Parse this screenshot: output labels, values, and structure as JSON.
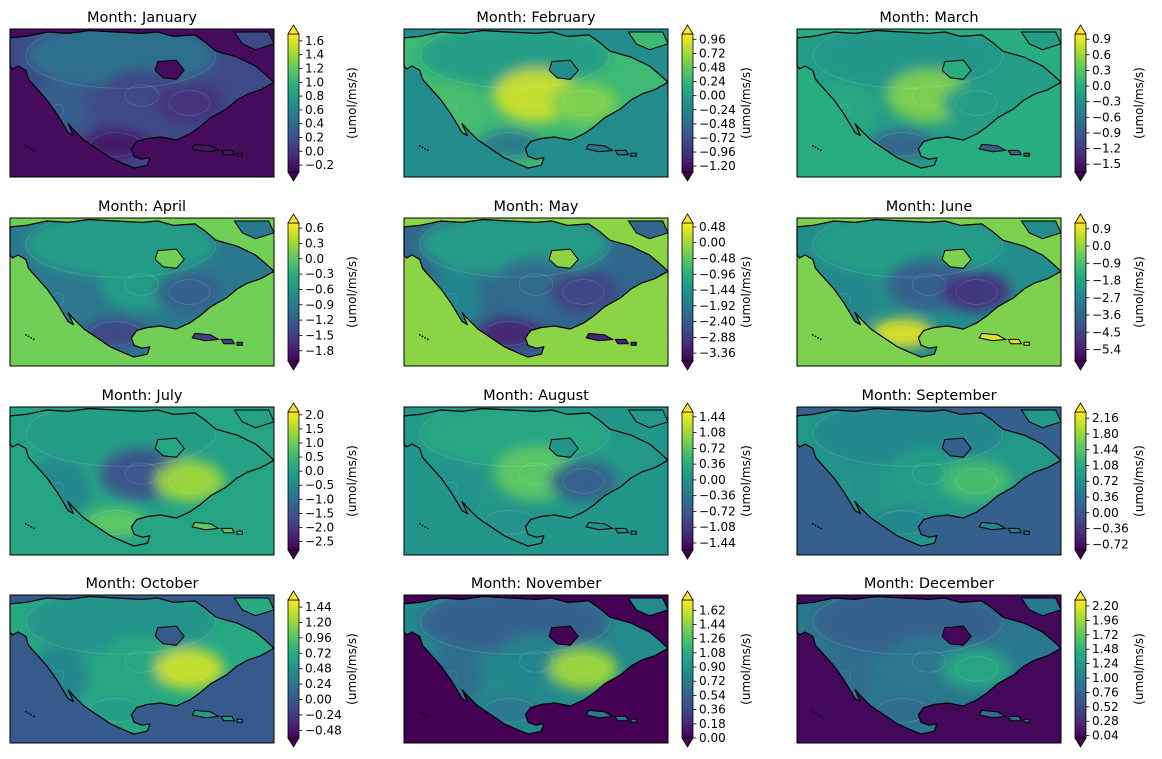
{
  "colormap": "viridis",
  "colors": {
    "ocean_default": "#3e4a89",
    "coast": "#000000",
    "frame": "#000000",
    "contour_line": "#ffffff"
  },
  "chart_data": [
    {
      "type": "heatmap",
      "title": "Month: January",
      "colorbar_label": "(umol/ms/s)",
      "colorbar_ticks": [
        "1.6",
        "1.4",
        "1.2",
        "1.0",
        "0.8",
        "0.6",
        "0.4",
        "0.2",
        "0.0",
        "−0.2"
      ],
      "vmin": -0.3,
      "vmax": 1.7,
      "ocean_value": 0.03,
      "pattern": [
        0.38,
        0.3,
        0.22,
        0.15,
        0.06
      ]
    },
    {
      "type": "heatmap",
      "title": "Month: February",
      "colorbar_label": "(umol/ms/s)",
      "colorbar_ticks": [
        "0.96",
        "0.72",
        "0.48",
        "0.24",
        "0.00",
        "−0.24",
        "−0.48",
        "−0.72",
        "−0.96",
        "−1.20"
      ],
      "vmin": -1.3,
      "vmax": 1.05,
      "ocean_value": 0.48,
      "pattern": [
        0.55,
        0.7,
        0.92,
        0.8,
        0.4
      ]
    },
    {
      "type": "heatmap",
      "title": "Month: March",
      "colorbar_label": "(umol/ms/s)",
      "colorbar_ticks": [
        "0.9",
        "0.6",
        "0.3",
        "0.0",
        "−0.3",
        "−0.6",
        "−0.9",
        "−1.2",
        "−1.5"
      ],
      "vmin": -1.65,
      "vmax": 1.0,
      "ocean_value": 0.62,
      "pattern": [
        0.52,
        0.6,
        0.8,
        0.55,
        0.3
      ]
    },
    {
      "type": "heatmap",
      "title": "Month: April",
      "colorbar_label": "(umol/ms/s)",
      "colorbar_ticks": [
        "0.6",
        "0.3",
        "0.0",
        "−0.3",
        "−0.6",
        "−0.9",
        "−1.2",
        "−1.5",
        "−1.8"
      ],
      "vmin": -2.0,
      "vmax": 0.7,
      "ocean_value": 0.78,
      "pattern": [
        0.55,
        0.4,
        0.55,
        0.3,
        0.2
      ]
    },
    {
      "type": "heatmap",
      "title": "Month: May",
      "colorbar_label": "(umol/ms/s)",
      "colorbar_ticks": [
        "0.48",
        "0.00",
        "−0.48",
        "−0.96",
        "−1.44",
        "−1.92",
        "−2.40",
        "−2.88",
        "−3.36"
      ],
      "vmin": -3.6,
      "vmax": 0.6,
      "ocean_value": 0.82,
      "pattern": [
        0.55,
        0.45,
        0.35,
        0.2,
        0.1
      ]
    },
    {
      "type": "heatmap",
      "title": "Month: June",
      "colorbar_label": "(umol/ms/s)",
      "colorbar_ticks": [
        "0.9",
        "0.0",
        "−0.9",
        "−1.8",
        "−2.7",
        "−3.6",
        "−4.5",
        "−5.4"
      ],
      "vmin": -6.0,
      "vmax": 1.2,
      "ocean_value": 0.8,
      "pattern": [
        0.55,
        0.45,
        0.3,
        0.15,
        0.95
      ]
    },
    {
      "type": "heatmap",
      "title": "Month: July",
      "colorbar_label": "(umol/ms/s)",
      "colorbar_ticks": [
        "2.0",
        "1.5",
        "1.0",
        "0.5",
        "0.0",
        "−0.5",
        "−1.0",
        "−1.5",
        "−2.0",
        "−2.5"
      ],
      "vmin": -2.8,
      "vmax": 2.1,
      "ocean_value": 0.58,
      "pattern": [
        0.55,
        0.45,
        0.25,
        0.85,
        0.75
      ]
    },
    {
      "type": "heatmap",
      "title": "Month: August",
      "colorbar_label": "(umol/ms/s)",
      "colorbar_ticks": [
        "1.44",
        "1.08",
        "0.72",
        "0.36",
        "0.00",
        "−0.36",
        "−0.72",
        "−1.08",
        "−1.44"
      ],
      "vmin": -1.6,
      "vmax": 1.55,
      "ocean_value": 0.52,
      "pattern": [
        0.6,
        0.5,
        0.75,
        0.3,
        0.5
      ]
    },
    {
      "type": "heatmap",
      "title": "Month: September",
      "colorbar_label": "(umol/ms/s)",
      "colorbar_ticks": [
        "2.16",
        "1.80",
        "1.44",
        "1.08",
        "0.72",
        "0.36",
        "0.00",
        "−0.36",
        "−0.72"
      ],
      "vmin": -0.85,
      "vmax": 2.3,
      "ocean_value": 0.3,
      "pattern": [
        0.45,
        0.5,
        0.55,
        0.7,
        0.45
      ]
    },
    {
      "type": "heatmap",
      "title": "Month: October",
      "colorbar_label": "(umol/ms/s)",
      "colorbar_ticks": [
        "1.44",
        "1.20",
        "0.96",
        "0.72",
        "0.48",
        "0.24",
        "0.00",
        "−0.24",
        "−0.48"
      ],
      "vmin": -0.6,
      "vmax": 1.55,
      "ocean_value": 0.28,
      "pattern": [
        0.5,
        0.45,
        0.6,
        0.92,
        0.55
      ]
    },
    {
      "type": "heatmap",
      "title": "Month: November",
      "colorbar_label": "(umol/ms/s)",
      "colorbar_ticks": [
        "1.62",
        "1.44",
        "1.26",
        "1.08",
        "0.90",
        "0.72",
        "0.54",
        "0.36",
        "0.18",
        "0.00"
      ],
      "vmin": 0.0,
      "vmax": 1.75,
      "ocean_value": 0.0,
      "pattern": [
        0.3,
        0.35,
        0.45,
        0.85,
        0.4
      ]
    },
    {
      "type": "heatmap",
      "title": "Month: December",
      "colorbar_label": "(umol/ms/s)",
      "colorbar_ticks": [
        "2.20",
        "1.96",
        "1.72",
        "1.48",
        "1.24",
        "1.00",
        "0.76",
        "0.52",
        "0.28",
        "0.04"
      ],
      "vmin": 0.0,
      "vmax": 2.3,
      "ocean_value": 0.02,
      "pattern": [
        0.3,
        0.35,
        0.4,
        0.6,
        0.35
      ]
    }
  ]
}
